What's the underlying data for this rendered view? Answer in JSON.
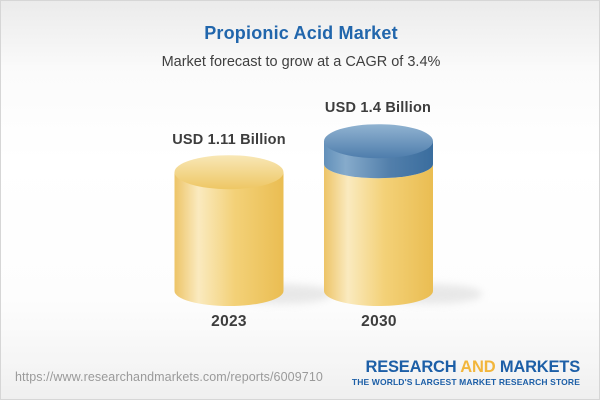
{
  "header": {
    "title": "Propionic Acid Market",
    "subtitle": "Market forecast to grow at a CAGR of 3.4%"
  },
  "chart_data": {
    "type": "bar",
    "variant": "3d-cylinder",
    "categories": [
      "2023",
      "2030"
    ],
    "values": [
      1.11,
      1.4
    ],
    "value_labels": [
      "USD 1.11 Billion",
      "USD 1.4 Billion"
    ],
    "unit": "USD Billion",
    "cagr": "3.4%",
    "title": "Propionic Acid Market",
    "subtitle": "Market forecast to grow at a CAGR of 3.4%",
    "ylim": [
      0,
      1.5
    ],
    "grid": false,
    "legend": "none",
    "colors": {
      "cylinder_gold": "#f0c766",
      "cylinder_gold_highlight": "#faeabf",
      "cylinder_gold_dark": "#eabd52",
      "growth_cap_blue": "#4a7aa9",
      "growth_cap_blue_light": "#8cb0cf"
    }
  },
  "footer": {
    "url": "https://www.researchandmarkets.com/reports/6009710",
    "logo": {
      "part1": "RESEARCH",
      "part2": "AND",
      "part3": "MARKETS",
      "tagline": "THE WORLD'S LARGEST MARKET RESEARCH STORE"
    }
  },
  "colors": {
    "title_blue": "#2166ac",
    "label_dark": "#3d3d3d",
    "url_gray": "#9a9a9a",
    "logo_blue": "#1d5fa7",
    "logo_gold": "#f2b63c",
    "background_top": "#ebebeb",
    "background_mid": "#ffffff"
  }
}
